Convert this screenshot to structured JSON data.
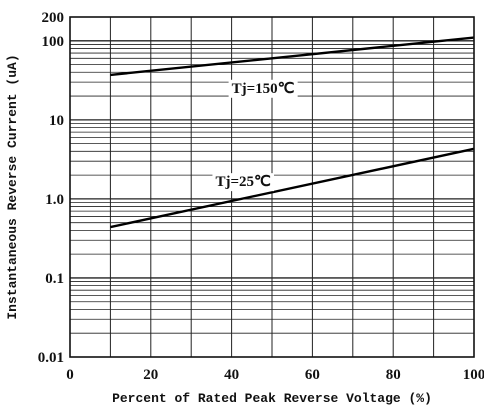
{
  "chart_data": {
    "type": "line",
    "xlabel": "Percent of Rated Peak Reverse Voltage (%)",
    "ylabel": "Instantaneous Reverse Current (uA)",
    "xlim": [
      0,
      100
    ],
    "ylim": [
      0.01,
      200
    ],
    "yscale": "log",
    "grid": true,
    "x_ticks": [
      "0",
      "20",
      "40",
      "60",
      "80",
      "100"
    ],
    "y_ticks": [
      {
        "value": 0.01,
        "label": "0.01"
      },
      {
        "value": 0.1,
        "label": "0.1"
      },
      {
        "value": 1.0,
        "label": "1.0"
      },
      {
        "value": 10,
        "label": "10"
      },
      {
        "value": 100,
        "label": "100"
      },
      {
        "value": 200,
        "label": "200"
      }
    ],
    "series": [
      {
        "name": "Tj=150℃",
        "x": [
          10,
          100
        ],
        "y": [
          37,
          110
        ]
      },
      {
        "name": "Tj=25℃",
        "x": [
          10,
          100
        ],
        "y": [
          0.44,
          4.3
        ]
      }
    ],
    "annotations": [
      {
        "text": "Tj=150℃",
        "x": 40,
        "y": 22
      },
      {
        "text": "Tj=25℃",
        "x": 36,
        "y": 1.45
      }
    ]
  }
}
